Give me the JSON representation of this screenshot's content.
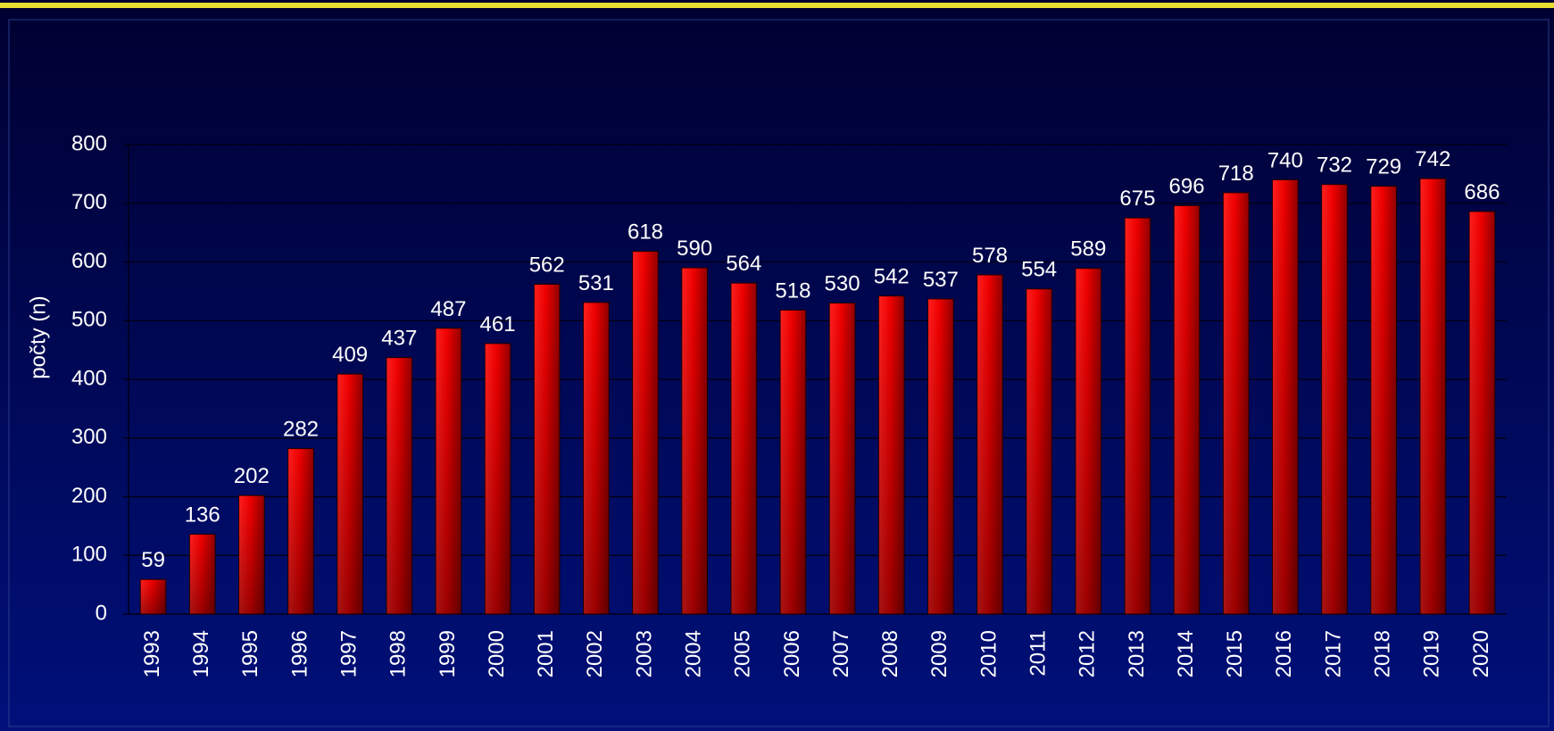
{
  "chart_data": {
    "type": "bar",
    "y_label": "počty (n)",
    "categories": [
      "1993",
      "1994",
      "1995",
      "1996",
      "1997",
      "1998",
      "1999",
      "2000",
      "2001",
      "2002",
      "2003",
      "2004",
      "2005",
      "2006",
      "2007",
      "2008",
      "2009",
      "2010",
      "2011",
      "2012",
      "2013",
      "2014",
      "2015",
      "2016",
      "2017",
      "2018",
      "2019",
      "2020"
    ],
    "values": [
      59,
      136,
      202,
      282,
      409,
      437,
      487,
      461,
      562,
      531,
      618,
      590,
      564,
      518,
      530,
      542,
      537,
      578,
      554,
      589,
      675,
      696,
      718,
      740,
      732,
      729,
      742,
      686
    ],
    "color": "#ff0000",
    "ylim": [
      0,
      800
    ],
    "yticks": [
      0,
      100,
      200,
      300,
      400,
      500,
      600,
      700,
      800
    ],
    "grid": true
  }
}
